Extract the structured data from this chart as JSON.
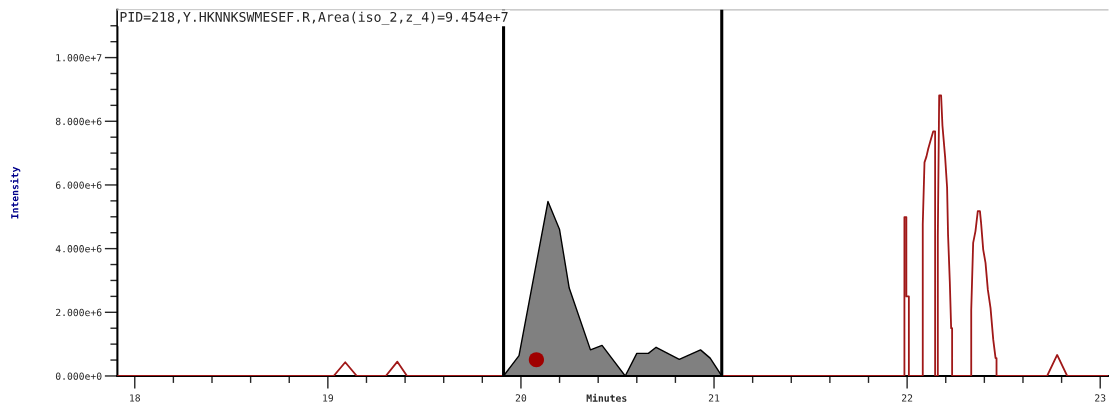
{
  "chart_data": {
    "type": "line",
    "xlabel": "Minutes",
    "ylabel": "Intensity",
    "annotations": [
      "PID=218,Y.HKNNKSWMESEF.R,Area(iso_2,z_4)=9.454e+7"
    ],
    "xlim": [
      17.91,
      23.04
    ],
    "ylim": [
      0,
      11500000
    ],
    "xticks": [
      {
        "value": 18,
        "label": "18"
      },
      {
        "value": 18.2,
        "label": null
      },
      {
        "value": 18.4,
        "label": null
      },
      {
        "value": 18.6,
        "label": null
      },
      {
        "value": 18.8,
        "label": null
      },
      {
        "value": 19,
        "label": "19"
      },
      {
        "value": 19.2,
        "label": null
      },
      {
        "value": 19.4,
        "label": null
      },
      {
        "value": 19.6,
        "label": null
      },
      {
        "value": 19.8,
        "label": null
      },
      {
        "value": 20,
        "label": "20"
      },
      {
        "value": 20.2,
        "label": null
      },
      {
        "value": 20.4,
        "label": null
      },
      {
        "value": 20.6,
        "label": null
      },
      {
        "value": 20.8,
        "label": null
      },
      {
        "value": 21,
        "label": "21"
      },
      {
        "value": 21.2,
        "label": null
      },
      {
        "value": 21.4,
        "label": null
      },
      {
        "value": 21.6,
        "label": null
      },
      {
        "value": 21.8,
        "label": null
      },
      {
        "value": 22,
        "label": "22"
      },
      {
        "value": 22.2,
        "label": null
      },
      {
        "value": 22.4,
        "label": null
      },
      {
        "value": 22.6,
        "label": null
      },
      {
        "value": 22.8,
        "label": null
      },
      {
        "value": 23,
        "label": "23"
      }
    ],
    "yticks": [
      {
        "value": 0,
        "label": "0.000e+0"
      },
      {
        "value": 500000,
        "label": null
      },
      {
        "value": 1000000,
        "label": null
      },
      {
        "value": 1500000,
        "label": null
      },
      {
        "value": 2000000,
        "label": "2.000e+6"
      },
      {
        "value": 2500000,
        "label": null
      },
      {
        "value": 3000000,
        "label": null
      },
      {
        "value": 3500000,
        "label": null
      },
      {
        "value": 4000000,
        "label": "4.000e+6"
      },
      {
        "value": 4500000,
        "label": null
      },
      {
        "value": 5000000,
        "label": null
      },
      {
        "value": 5500000,
        "label": null
      },
      {
        "value": 6000000,
        "label": "6.000e+6"
      },
      {
        "value": 6500000,
        "label": null
      },
      {
        "value": 7000000,
        "label": null
      },
      {
        "value": 7500000,
        "label": null
      },
      {
        "value": 8000000,
        "label": "8.000e+6"
      },
      {
        "value": 8500000,
        "label": null
      },
      {
        "value": 9000000,
        "label": null
      },
      {
        "value": 9500000,
        "label": null
      },
      {
        "value": 10000000,
        "label": "1.000e+7"
      },
      {
        "value": 10500000,
        "label": null
      },
      {
        "value": 11000000,
        "label": null
      }
    ],
    "grid": false,
    "legend": false,
    "ref_lines": [
      {
        "axis": "x",
        "value": 19.91,
        "color": "#000000"
      },
      {
        "axis": "x",
        "value": 21.04,
        "color": "#000000"
      }
    ],
    "series": [
      {
        "type": "area",
        "color": "#808080",
        "x": [
          19.91,
          19.99,
          20.14,
          20.2,
          20.25,
          20.36,
          20.42,
          20.54,
          20.6,
          20.66,
          20.7,
          20.82,
          20.93,
          20.98,
          21.04
        ],
        "values": [
          0,
          640000,
          5480000,
          4600000,
          2760000,
          820000,
          960000,
          0,
          710000,
          710000,
          900000,
          520000,
          820000,
          560000,
          0
        ]
      },
      {
        "color": "#a01818",
        "x": [
          17.91,
          19.03,
          19.09,
          19.15,
          19.3,
          19.36,
          19.41,
          19.91
        ],
        "values": [
          0,
          0,
          430000,
          0,
          0,
          450000,
          0,
          0
        ]
      },
      {
        "color": "#a01818",
        "x": [
          21.04,
          21.986,
          21.986,
          21.996,
          21.996,
          22.009,
          22.009,
          22.081,
          22.081,
          22.09,
          22.1,
          22.109,
          22.121,
          22.135,
          22.145,
          22.145,
          22.159,
          22.159,
          22.166,
          22.176,
          22.183,
          22.197,
          22.207,
          22.212,
          22.221,
          22.228,
          22.233,
          22.233,
          22.332,
          22.332,
          22.342,
          22.354,
          22.366,
          22.377,
          22.383,
          22.394,
          22.406,
          22.418,
          22.432,
          22.446,
          22.458,
          22.463,
          22.463,
          22.725,
          22.777,
          22.829,
          23.04
        ],
        "values": [
          0,
          0,
          4990000,
          4990000,
          2500000,
          2500000,
          0,
          0,
          4760000,
          6710000,
          6890000,
          7130000,
          7390000,
          7680000,
          7680000,
          0,
          0,
          4390000,
          8810000,
          8810000,
          7860000,
          6860000,
          5920000,
          4430000,
          2970000,
          1500000,
          1500000,
          0,
          0,
          2080000,
          4180000,
          4550000,
          5180000,
          5180000,
          4810000,
          3970000,
          3550000,
          2710000,
          2130000,
          1140000,
          560000,
          560000,
          0,
          0,
          660000,
          0,
          0
        ]
      },
      {
        "type": "scatter",
        "color": "#a00000",
        "marker": "circle",
        "x": [
          20.08
        ],
        "values": [
          510000
        ]
      }
    ]
  }
}
